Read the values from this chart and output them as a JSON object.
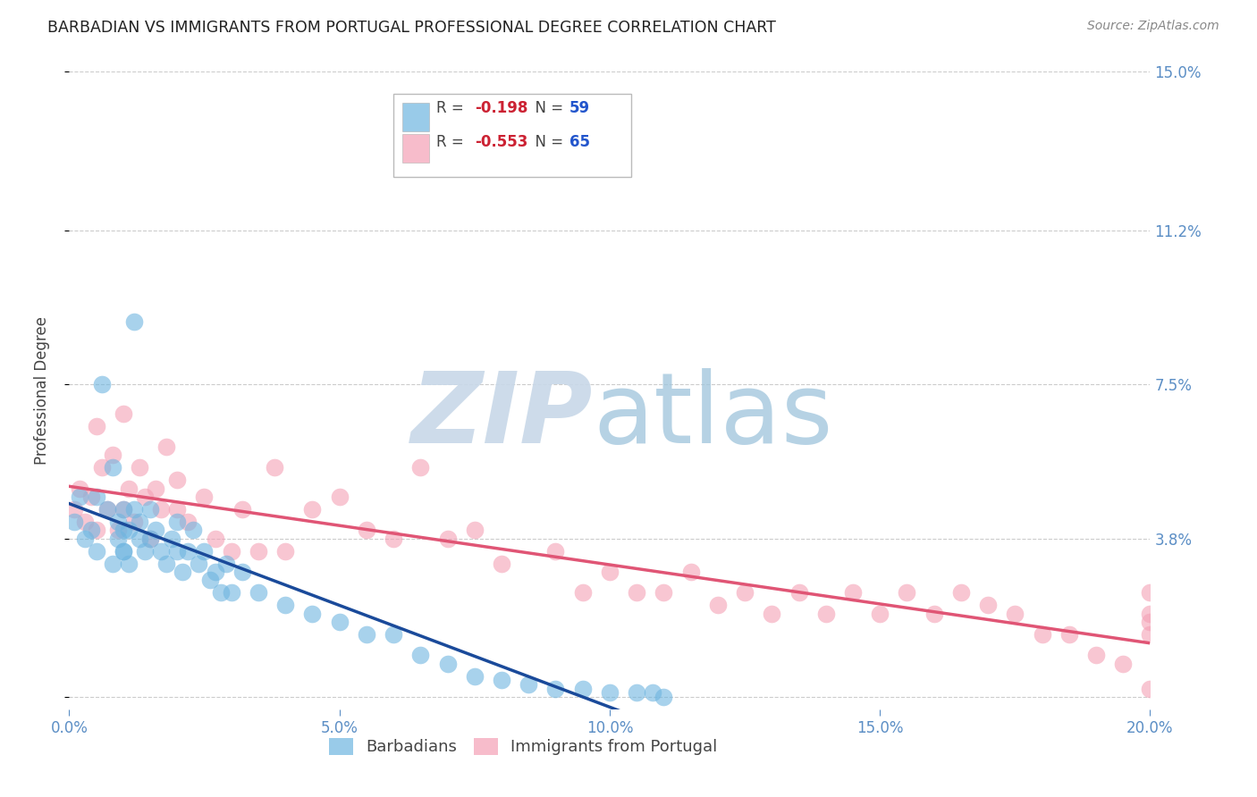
{
  "title": "BARBADIAN VS IMMIGRANTS FROM PORTUGAL PROFESSIONAL DEGREE CORRELATION CHART",
  "source": "Source: ZipAtlas.com",
  "xlabel_vals": [
    0.0,
    5.0,
    10.0,
    15.0,
    20.0
  ],
  "ylabel": "Professional Degree",
  "ylabel_vals": [
    0.0,
    3.8,
    7.5,
    11.2,
    15.0
  ],
  "xlim": [
    0.0,
    20.0
  ],
  "ylim": [
    -0.3,
    15.0
  ],
  "legend1_R": "-0.198",
  "legend1_N": "59",
  "legend2_R": "-0.553",
  "legend2_N": "65",
  "legend_bottom_label1": "Barbadians",
  "legend_bottom_label2": "Immigrants from Portugal",
  "barbadian_color": "#6EB5E0",
  "portugal_color": "#F4A0B5",
  "barbadian_line_color": "#1A4A9A",
  "portugal_line_color": "#E05575",
  "background_color": "#FFFFFF",
  "barbadian_x": [
    0.1,
    0.2,
    0.3,
    0.4,
    0.5,
    0.5,
    0.6,
    0.7,
    0.8,
    0.8,
    0.9,
    0.9,
    1.0,
    1.0,
    1.0,
    1.0,
    1.1,
    1.1,
    1.2,
    1.2,
    1.3,
    1.3,
    1.4,
    1.5,
    1.5,
    1.6,
    1.7,
    1.8,
    1.9,
    2.0,
    2.0,
    2.1,
    2.2,
    2.3,
    2.4,
    2.5,
    2.6,
    2.7,
    2.8,
    2.9,
    3.0,
    3.2,
    3.5,
    4.0,
    4.5,
    5.0,
    5.5,
    6.0,
    6.5,
    7.0,
    7.5,
    8.0,
    8.5,
    9.0,
    9.5,
    10.0,
    10.5,
    10.8,
    11.0
  ],
  "barbadian_y": [
    4.2,
    4.8,
    3.8,
    4.0,
    3.5,
    4.8,
    7.5,
    4.5,
    3.2,
    5.5,
    3.8,
    4.2,
    3.5,
    4.0,
    3.5,
    4.5,
    3.2,
    4.0,
    4.5,
    9.0,
    3.8,
    4.2,
    3.5,
    3.8,
    4.5,
    4.0,
    3.5,
    3.2,
    3.8,
    3.5,
    4.2,
    3.0,
    3.5,
    4.0,
    3.2,
    3.5,
    2.8,
    3.0,
    2.5,
    3.2,
    2.5,
    3.0,
    2.5,
    2.2,
    2.0,
    1.8,
    1.5,
    1.5,
    1.0,
    0.8,
    0.5,
    0.4,
    0.3,
    0.2,
    0.2,
    0.1,
    0.1,
    0.1,
    0.0
  ],
  "portugal_x": [
    0.1,
    0.2,
    0.3,
    0.4,
    0.5,
    0.5,
    0.6,
    0.7,
    0.8,
    0.9,
    1.0,
    1.0,
    1.1,
    1.2,
    1.3,
    1.4,
    1.5,
    1.6,
    1.7,
    1.8,
    2.0,
    2.0,
    2.2,
    2.5,
    2.7,
    3.0,
    3.2,
    3.5,
    3.8,
    4.0,
    4.5,
    5.0,
    5.5,
    6.0,
    6.5,
    7.0,
    7.5,
    8.0,
    9.0,
    9.5,
    10.0,
    10.5,
    11.0,
    11.5,
    12.0,
    12.5,
    13.0,
    13.5,
    14.0,
    14.5,
    15.0,
    15.5,
    16.0,
    16.5,
    17.0,
    17.5,
    18.0,
    18.5,
    19.0,
    19.5,
    20.0,
    20.0,
    20.0,
    20.0,
    20.0
  ],
  "portugal_y": [
    4.5,
    5.0,
    4.2,
    4.8,
    4.0,
    6.5,
    5.5,
    4.5,
    5.8,
    4.0,
    6.8,
    4.5,
    5.0,
    4.2,
    5.5,
    4.8,
    3.8,
    5.0,
    4.5,
    6.0,
    4.5,
    5.2,
    4.2,
    4.8,
    3.8,
    3.5,
    4.5,
    3.5,
    5.5,
    3.5,
    4.5,
    4.8,
    4.0,
    3.8,
    5.5,
    3.8,
    4.0,
    3.2,
    3.5,
    2.5,
    3.0,
    2.5,
    2.5,
    3.0,
    2.2,
    2.5,
    2.0,
    2.5,
    2.0,
    2.5,
    2.0,
    2.5,
    2.0,
    2.5,
    2.2,
    2.0,
    1.5,
    1.5,
    1.0,
    0.8,
    0.2,
    1.5,
    2.0,
    2.5,
    1.8
  ]
}
